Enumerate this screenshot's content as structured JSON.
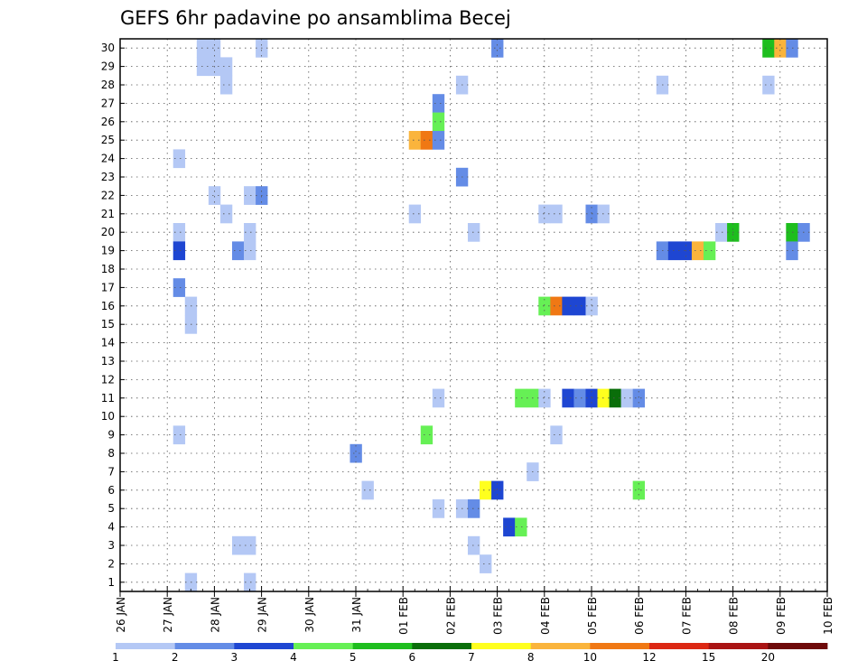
{
  "chart_data": {
    "type": "heatmap",
    "title": "GEFS 6hr padavine po ansamblima Becej",
    "xlabel": "",
    "ylabel": "",
    "x_ticks": [
      "26 JAN",
      "27 JAN",
      "28 JAN",
      "29 JAN",
      "30 JAN",
      "31 JAN",
      "01 FEB",
      "02 FEB",
      "03 FEB",
      "04 FEB",
      "05 FEB",
      "06 FEB",
      "07 FEB",
      "08 FEB",
      "09 FEB",
      "10 FEB"
    ],
    "xlim": [
      0,
      15
    ],
    "y_ticks": [
      1,
      2,
      3,
      4,
      5,
      6,
      7,
      8,
      9,
      10,
      11,
      12,
      13,
      14,
      15,
      16,
      17,
      18,
      19,
      20,
      21,
      22,
      23,
      24,
      25,
      26,
      27,
      28,
      29,
      30
    ],
    "ylim": [
      0.5,
      30.5
    ],
    "grid": true,
    "x_units": "days after 26 JAN 00Z (6-hour steps)",
    "legend": {
      "placement": "bottom",
      "labels": [
        "1",
        "2",
        "3",
        "4",
        "5",
        "6",
        "7",
        "8",
        "10",
        "12",
        "15",
        "20"
      ],
      "colors": [
        "#b4c8f5",
        "#648ce6",
        "#1e46d2",
        "#66f055",
        "#1ebe1e",
        "#0a6e0a",
        "#ffff1e",
        "#fab43c",
        "#f07814",
        "#dc2814",
        "#aa1414",
        "#6e0a0a"
      ]
    },
    "cells": [
      {
        "x": 1.75,
        "y": 30,
        "c": 0
      },
      {
        "x": 2.0,
        "y": 30,
        "c": 0
      },
      {
        "x": 3.0,
        "y": 30,
        "c": 0
      },
      {
        "x": 8.0,
        "y": 30,
        "c": 1
      },
      {
        "x": 13.75,
        "y": 30,
        "c": 4
      },
      {
        "x": 14.0,
        "y": 30,
        "c": 7
      },
      {
        "x": 14.25,
        "y": 30,
        "c": 1
      },
      {
        "x": 1.75,
        "y": 29,
        "c": 0
      },
      {
        "x": 2.0,
        "y": 29,
        "c": 0
      },
      {
        "x": 2.25,
        "y": 29,
        "c": 0
      },
      {
        "x": 2.25,
        "y": 28,
        "c": 0
      },
      {
        "x": 7.25,
        "y": 28,
        "c": 0
      },
      {
        "x": 11.5,
        "y": 28,
        "c": 0
      },
      {
        "x": 13.75,
        "y": 28,
        "c": 0
      },
      {
        "x": 6.75,
        "y": 27,
        "c": 1
      },
      {
        "x": 6.75,
        "y": 26,
        "c": 3
      },
      {
        "x": 6.25,
        "y": 25,
        "c": 7
      },
      {
        "x": 6.5,
        "y": 25,
        "c": 8
      },
      {
        "x": 6.75,
        "y": 25,
        "c": 1
      },
      {
        "x": 1.25,
        "y": 24,
        "c": 0
      },
      {
        "x": 7.25,
        "y": 23,
        "c": 1
      },
      {
        "x": 2.0,
        "y": 22,
        "c": 0
      },
      {
        "x": 2.75,
        "y": 22,
        "c": 0
      },
      {
        "x": 3.0,
        "y": 22,
        "c": 1
      },
      {
        "x": 2.25,
        "y": 21,
        "c": 0
      },
      {
        "x": 6.25,
        "y": 21,
        "c": 0
      },
      {
        "x": 9.0,
        "y": 21,
        "c": 0
      },
      {
        "x": 9.25,
        "y": 21,
        "c": 0
      },
      {
        "x": 10.0,
        "y": 21,
        "c": 1
      },
      {
        "x": 10.25,
        "y": 21,
        "c": 0
      },
      {
        "x": 1.25,
        "y": 20,
        "c": 0
      },
      {
        "x": 2.75,
        "y": 20,
        "c": 0
      },
      {
        "x": 7.5,
        "y": 20,
        "c": 0
      },
      {
        "x": 12.75,
        "y": 20,
        "c": 0
      },
      {
        "x": 13.0,
        "y": 20,
        "c": 4
      },
      {
        "x": 14.25,
        "y": 20,
        "c": 4
      },
      {
        "x": 14.5,
        "y": 20,
        "c": 1
      },
      {
        "x": 1.25,
        "y": 19,
        "c": 2
      },
      {
        "x": 2.5,
        "y": 19,
        "c": 1
      },
      {
        "x": 2.75,
        "y": 19,
        "c": 0
      },
      {
        "x": 11.5,
        "y": 19,
        "c": 1
      },
      {
        "x": 11.75,
        "y": 19,
        "c": 2
      },
      {
        "x": 12.0,
        "y": 19,
        "c": 2
      },
      {
        "x": 12.25,
        "y": 19,
        "c": 7
      },
      {
        "x": 12.5,
        "y": 19,
        "c": 3
      },
      {
        "x": 14.25,
        "y": 19,
        "c": 1
      },
      {
        "x": 1.25,
        "y": 17,
        "c": 1
      },
      {
        "x": 1.5,
        "y": 16,
        "c": 0
      },
      {
        "x": 9.0,
        "y": 16,
        "c": 3
      },
      {
        "x": 9.25,
        "y": 16,
        "c": 8
      },
      {
        "x": 9.5,
        "y": 16,
        "c": 2
      },
      {
        "x": 9.75,
        "y": 16,
        "c": 2
      },
      {
        "x": 10.0,
        "y": 16,
        "c": 0
      },
      {
        "x": 1.5,
        "y": 15,
        "c": 0
      },
      {
        "x": 6.75,
        "y": 11,
        "c": 0
      },
      {
        "x": 8.5,
        "y": 11,
        "c": 3
      },
      {
        "x": 8.75,
        "y": 11,
        "c": 3
      },
      {
        "x": 9.0,
        "y": 11,
        "c": 0
      },
      {
        "x": 9.5,
        "y": 11,
        "c": 2
      },
      {
        "x": 9.75,
        "y": 11,
        "c": 1
      },
      {
        "x": 10.0,
        "y": 11,
        "c": 2
      },
      {
        "x": 10.25,
        "y": 11,
        "c": 6
      },
      {
        "x": 10.5,
        "y": 11,
        "c": 5
      },
      {
        "x": 10.75,
        "y": 11,
        "c": 0
      },
      {
        "x": 11.0,
        "y": 11,
        "c": 1
      },
      {
        "x": 1.25,
        "y": 9,
        "c": 0
      },
      {
        "x": 6.5,
        "y": 9,
        "c": 3
      },
      {
        "x": 9.25,
        "y": 9,
        "c": 0
      },
      {
        "x": 5.0,
        "y": 8,
        "c": 1
      },
      {
        "x": 8.75,
        "y": 7,
        "c": 0
      },
      {
        "x": 5.25,
        "y": 6,
        "c": 0
      },
      {
        "x": 7.75,
        "y": 6,
        "c": 6
      },
      {
        "x": 8.0,
        "y": 6,
        "c": 2
      },
      {
        "x": 11.0,
        "y": 6,
        "c": 3
      },
      {
        "x": 6.75,
        "y": 5,
        "c": 0
      },
      {
        "x": 7.25,
        "y": 5,
        "c": 0
      },
      {
        "x": 7.5,
        "y": 5,
        "c": 1
      },
      {
        "x": 8.25,
        "y": 4,
        "c": 2
      },
      {
        "x": 8.5,
        "y": 4,
        "c": 3
      },
      {
        "x": 2.5,
        "y": 3,
        "c": 0
      },
      {
        "x": 2.75,
        "y": 3,
        "c": 0
      },
      {
        "x": 7.5,
        "y": 3,
        "c": 0
      },
      {
        "x": 7.75,
        "y": 2,
        "c": 0
      },
      {
        "x": 1.5,
        "y": 1,
        "c": 0
      },
      {
        "x": 2.75,
        "y": 1,
        "c": 0
      }
    ]
  }
}
